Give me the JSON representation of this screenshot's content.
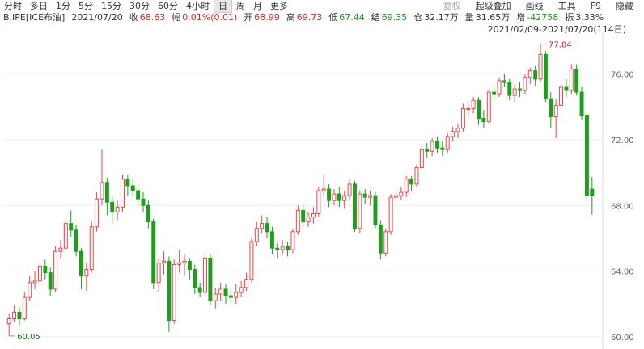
{
  "toolbar": {
    "left": [
      "分时",
      "多日",
      "1分",
      "5分",
      "15分",
      "30分",
      "60分",
      "4小时",
      "日",
      "周",
      "月",
      "更多"
    ],
    "selected": 8,
    "right": [
      "复权",
      "超级叠加",
      "画线",
      "工具",
      "F9",
      "隐藏"
    ]
  },
  "info": {
    "symbol": "B.IPE[ICE布油]",
    "date": "2021/07/20",
    "items": [
      {
        "label": "收",
        "value": "68.63",
        "color": "#d9261c"
      },
      {
        "label": "幅",
        "value": "0.01%(0.01)",
        "color": "#d9261c"
      },
      {
        "label": "开",
        "value": "68.99",
        "color": "#d9261c"
      },
      {
        "label": "高",
        "value": "69.73",
        "color": "#d9261c"
      },
      {
        "label": "低",
        "value": "67.44",
        "color": "#1a9a1a"
      },
      {
        "label": "结",
        "value": "69.35",
        "color": "#1a9a1a"
      },
      {
        "label": "仓",
        "value": "32.17万",
        "color": "#333"
      },
      {
        "label": "量",
        "value": "31.65万",
        "color": "#333"
      },
      {
        "label": "增",
        "value": "-42758",
        "color": "#1a9a1a"
      },
      {
        "label": "振",
        "value": "3.33%",
        "color": "#333"
      }
    ]
  },
  "chart_data": {
    "type": "candlestick",
    "range_label": "2021/02/09-2021/07/20(114日)",
    "up_color": "#e8474a",
    "down_color": "#1e9e1e",
    "ylim": [
      59.6,
      78.3
    ],
    "yticks": [
      {
        "value": 60,
        "label": "60.00"
      },
      {
        "value": 64,
        "label": "64.00"
      },
      {
        "value": 68,
        "label": "68.00"
      },
      {
        "value": 72,
        "label": "72.00"
      },
      {
        "value": 76,
        "label": "76.00"
      }
    ],
    "grid": true,
    "candles": [
      [
        60.8,
        61.4,
        60.05,
        61.1
      ],
      [
        61.1,
        61.9,
        60.9,
        61.5
      ],
      [
        61.5,
        61.8,
        60.7,
        61.1
      ],
      [
        61.1,
        62.7,
        61.0,
        62.4
      ],
      [
        62.4,
        63.7,
        62.2,
        63.3
      ],
      [
        63.3,
        64.0,
        62.9,
        63.4
      ],
      [
        63.4,
        64.6,
        63.1,
        64.3
      ],
      [
        64.3,
        64.7,
        63.5,
        63.9
      ],
      [
        63.9,
        64.2,
        62.5,
        62.9
      ],
      [
        62.9,
        65.5,
        62.7,
        65.2
      ],
      [
        65.2,
        65.9,
        64.8,
        65.4
      ],
      [
        65.4,
        67.2,
        65.2,
        66.9
      ],
      [
        66.9,
        67.7,
        66.1,
        66.5
      ],
      [
        66.5,
        66.8,
        64.9,
        65.2
      ],
      [
        65.2,
        65.4,
        62.9,
        63.7
      ],
      [
        63.7,
        64.5,
        62.8,
        64.1
      ],
      [
        64.1,
        67.0,
        63.9,
        66.7
      ],
      [
        66.7,
        68.8,
        66.4,
        68.4
      ],
      [
        68.4,
        71.4,
        68.0,
        69.4
      ],
      [
        69.4,
        69.7,
        67.4,
        68.2
      ],
      [
        68.2,
        68.6,
        66.9,
        67.6
      ],
      [
        67.6,
        68.3,
        67.1,
        67.9
      ],
      [
        67.9,
        69.9,
        67.6,
        69.6
      ],
      [
        69.6,
        69.9,
        68.6,
        69.2
      ],
      [
        69.2,
        69.7,
        68.5,
        68.9
      ],
      [
        68.9,
        69.3,
        67.9,
        68.4
      ],
      [
        68.4,
        68.8,
        67.6,
        68.0
      ],
      [
        68.0,
        68.3,
        66.6,
        67.0
      ],
      [
        67.0,
        67.2,
        62.9,
        63.3
      ],
      [
        63.3,
        64.8,
        62.7,
        64.5
      ],
      [
        64.5,
        65.2,
        63.8,
        64.6
      ],
      [
        64.6,
        64.9,
        60.3,
        61.0
      ],
      [
        61.0,
        64.7,
        60.8,
        64.4
      ],
      [
        64.4,
        65.3,
        63.9,
        64.5
      ],
      [
        64.5,
        65.0,
        63.7,
        64.6
      ],
      [
        64.6,
        64.8,
        63.5,
        64.1
      ],
      [
        64.1,
        64.4,
        62.6,
        63.0
      ],
      [
        63.0,
        63.3,
        62.4,
        62.7
      ],
      [
        62.7,
        65.1,
        62.5,
        64.8
      ],
      [
        64.8,
        65.0,
        61.9,
        62.2
      ],
      [
        62.2,
        63.0,
        61.7,
        62.6
      ],
      [
        62.6,
        63.3,
        62.2,
        62.9
      ],
      [
        62.9,
        63.2,
        62.0,
        62.5
      ],
      [
        62.5,
        62.9,
        61.9,
        62.4
      ],
      [
        62.4,
        63.2,
        62.0,
        62.7
      ],
      [
        62.7,
        63.4,
        62.4,
        63.0
      ],
      [
        63.0,
        63.9,
        62.8,
        63.5
      ],
      [
        63.5,
        66.0,
        63.3,
        65.8
      ],
      [
        65.8,
        67.0,
        65.5,
        66.6
      ],
      [
        66.6,
        67.4,
        66.3,
        66.9
      ],
      [
        66.9,
        67.3,
        66.0,
        66.4
      ],
      [
        66.4,
        66.7,
        65.0,
        65.4
      ],
      [
        65.4,
        65.7,
        64.8,
        65.3
      ],
      [
        65.3,
        65.9,
        65.0,
        65.5
      ],
      [
        65.5,
        65.8,
        64.9,
        65.3
      ],
      [
        65.3,
        66.6,
        65.1,
        66.4
      ],
      [
        66.4,
        68.0,
        66.2,
        67.7
      ],
      [
        67.7,
        68.1,
        66.7,
        67.0
      ],
      [
        67.0,
        67.6,
        66.7,
        67.3
      ],
      [
        67.3,
        67.9,
        66.9,
        67.5
      ],
      [
        67.5,
        69.1,
        67.3,
        68.9
      ],
      [
        68.9,
        69.9,
        68.5,
        69.0
      ],
      [
        69.0,
        69.3,
        67.9,
        68.3
      ],
      [
        68.3,
        69.0,
        68.0,
        68.7
      ],
      [
        68.7,
        69.1,
        67.9,
        68.3
      ],
      [
        68.3,
        68.9,
        67.8,
        68.6
      ],
      [
        68.6,
        69.6,
        68.3,
        69.3
      ],
      [
        69.3,
        69.5,
        66.4,
        66.6
      ],
      [
        66.6,
        68.9,
        66.3,
        68.7
      ],
      [
        68.7,
        69.0,
        68.1,
        68.5
      ],
      [
        68.5,
        68.9,
        68.0,
        68.6
      ],
      [
        68.6,
        68.8,
        66.6,
        66.8
      ],
      [
        66.8,
        67.1,
        64.7,
        65.1
      ],
      [
        65.1,
        66.6,
        64.9,
        66.4
      ],
      [
        66.4,
        68.7,
        66.2,
        68.5
      ],
      [
        68.5,
        69.0,
        68.2,
        68.6
      ],
      [
        68.6,
        69.1,
        68.3,
        68.8
      ],
      [
        68.8,
        69.8,
        68.5,
        69.6
      ],
      [
        69.6,
        69.8,
        68.9,
        69.3
      ],
      [
        69.3,
        70.5,
        69.1,
        70.3
      ],
      [
        70.3,
        71.7,
        70.1,
        71.4
      ],
      [
        71.4,
        71.8,
        70.9,
        71.3
      ],
      [
        71.3,
        72.1,
        71.0,
        71.9
      ],
      [
        71.9,
        72.2,
        71.2,
        71.5
      ],
      [
        71.5,
        71.9,
        71.0,
        71.4
      ],
      [
        71.4,
        72.4,
        71.2,
        72.2
      ],
      [
        72.2,
        72.8,
        71.9,
        72.5
      ],
      [
        72.5,
        73.0,
        72.1,
        72.7
      ],
      [
        72.7,
        74.2,
        72.5,
        73.9
      ],
      [
        73.9,
        74.3,
        73.4,
        73.9
      ],
      [
        73.9,
        74.6,
        73.6,
        74.4
      ],
      [
        74.4,
        74.6,
        72.9,
        73.3
      ],
      [
        73.3,
        73.8,
        72.7,
        73.1
      ],
      [
        73.1,
        75.1,
        72.9,
        74.9
      ],
      [
        74.9,
        75.3,
        74.4,
        74.8
      ],
      [
        74.8,
        75.8,
        74.6,
        75.6
      ],
      [
        75.6,
        76.0,
        75.2,
        75.5
      ],
      [
        75.5,
        75.7,
        74.4,
        74.7
      ],
      [
        74.7,
        75.4,
        74.3,
        75.1
      ],
      [
        75.1,
        75.5,
        74.6,
        75.0
      ],
      [
        75.0,
        76.0,
        74.8,
        75.8
      ],
      [
        75.8,
        76.4,
        75.4,
        76.2
      ],
      [
        76.2,
        76.5,
        75.3,
        75.7
      ],
      [
        75.7,
        77.84,
        75.5,
        77.2
      ],
      [
        77.2,
        77.4,
        74.3,
        74.5
      ],
      [
        74.5,
        74.9,
        72.7,
        73.4
      ],
      [
        73.4,
        74.5,
        72.1,
        74.1
      ],
      [
        74.1,
        75.4,
        73.8,
        75.2
      ],
      [
        75.2,
        75.7,
        74.6,
        75.0
      ],
      [
        75.0,
        76.6,
        74.8,
        76.3
      ],
      [
        76.3,
        76.6,
        74.7,
        74.9
      ],
      [
        74.9,
        75.2,
        73.2,
        73.5
      ],
      [
        73.5,
        73.6,
        68.2,
        68.6
      ],
      [
        68.99,
        69.73,
        67.44,
        68.63
      ]
    ],
    "max_label": {
      "index": 103,
      "text": "77.84"
    },
    "min_label": {
      "index": 0,
      "text": "60.05"
    }
  }
}
